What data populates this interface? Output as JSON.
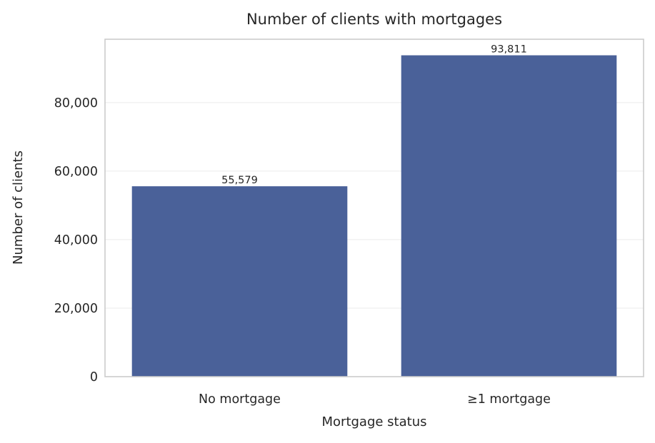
{
  "chart_data": {
    "type": "bar",
    "title": "Number of clients with mortgages",
    "xlabel": "Mortgage status",
    "ylabel": "Number of clients",
    "categories": [
      "No mortgage",
      "≥1 mortgage"
    ],
    "values": [
      55579,
      93811
    ],
    "value_labels": [
      "55,579",
      "93,811"
    ],
    "ylim": [
      0,
      98501
    ],
    "yticks": [
      0,
      20000,
      40000,
      60000,
      80000
    ],
    "ytick_labels": [
      "0",
      "20,000",
      "40,000",
      "60,000",
      "80,000"
    ],
    "grid": true,
    "bar_color": "#4a6199"
  }
}
